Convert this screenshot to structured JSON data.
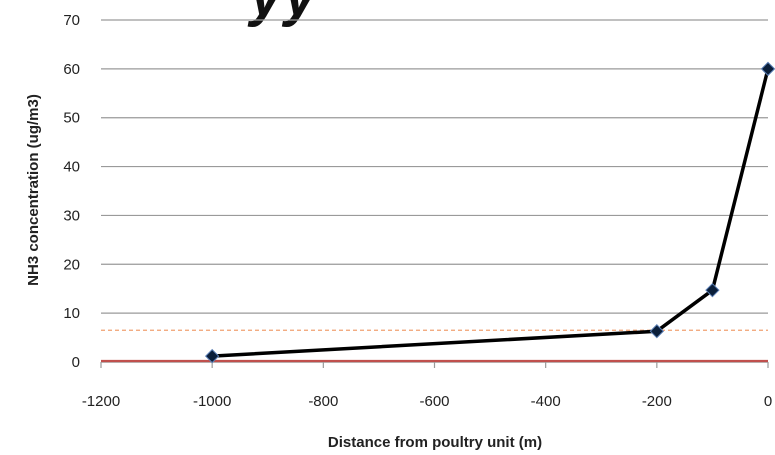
{
  "chart_data": {
    "type": "line",
    "title_fragment": "yy",
    "xlabel": "Distance from poultry unit (m)",
    "ylabel": "NH3 concentration (ug/m3)",
    "xlim": [
      -1200,
      0
    ],
    "ylim": [
      0,
      70
    ],
    "x_ticks": [
      -1200,
      -1000,
      -800,
      -600,
      -400,
      -200,
      0
    ],
    "y_ticks": [
      0,
      10,
      20,
      30,
      40,
      50,
      60,
      70
    ],
    "grid": "horizontal",
    "series": [
      {
        "x": [
          -1000,
          -200,
          -100,
          0
        ],
        "y": [
          1.2,
          6.3,
          14.7,
          60
        ],
        "color": "#000000",
        "marker": "diamond",
        "marker_color": "#0b1f3a"
      }
    ],
    "reference_lines": [
      {
        "y": 6.5,
        "style": "dashed",
        "color": "#f0a070"
      },
      {
        "y": 0.2,
        "style": "solid",
        "color": "#c0504d"
      }
    ]
  }
}
